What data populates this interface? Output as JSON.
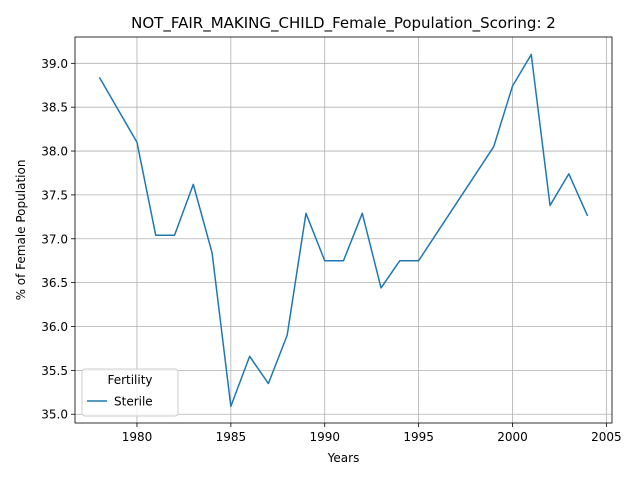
{
  "chart_data": {
    "type": "line",
    "title": "NOT_FAIR_MAKING_CHILD_Female_Population_Scoring: 2",
    "xlabel": "Years",
    "ylabel": "% of Female Population",
    "xlim": [
      1976.7,
      2005.3
    ],
    "ylim": [
      34.9,
      39.3
    ],
    "xticks": [
      1980,
      1985,
      1990,
      1995,
      2000,
      2005
    ],
    "yticks": [
      35.0,
      35.5,
      36.0,
      36.5,
      37.0,
      37.5,
      38.0,
      38.5,
      39.0
    ],
    "grid": true,
    "legend": {
      "title": "Fertility",
      "position": "lower-left"
    },
    "series": [
      {
        "name": "Sterile",
        "color": "#1f77b4",
        "x": [
          1978,
          1980,
          1981,
          1982,
          1983,
          1984,
          1985,
          1986,
          1987,
          1988,
          1989,
          1990,
          1991,
          1992,
          1993,
          1994,
          1995,
          1999,
          2000,
          2001,
          2002,
          2003,
          2004
        ],
        "y": [
          38.84,
          38.1,
          37.04,
          37.04,
          37.62,
          36.84,
          35.09,
          35.66,
          35.35,
          35.9,
          37.29,
          36.75,
          36.75,
          37.29,
          36.44,
          36.75,
          36.75,
          38.05,
          38.74,
          39.1,
          37.38,
          37.74,
          37.26
        ]
      }
    ]
  }
}
